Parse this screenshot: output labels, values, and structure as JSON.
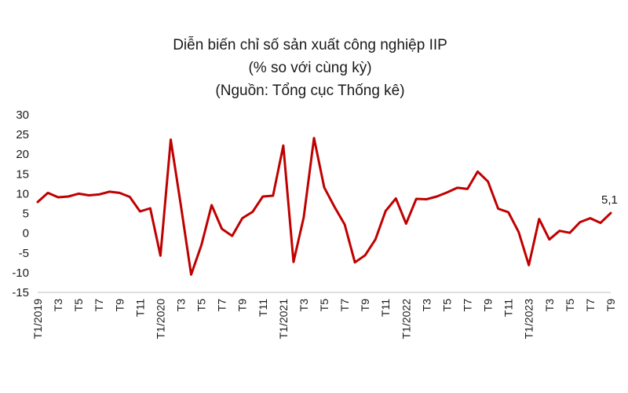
{
  "chart_data": {
    "type": "line",
    "title_lines": [
      "Diễn biến chỉ số sản xuất công nghiệp IIP",
      "(% so với cùng kỳ)",
      "(Nguồn: Tổng cục Thống kê)"
    ],
    "xlabel": "",
    "ylabel": "",
    "ylim": [
      -15,
      30
    ],
    "yticks": [
      30,
      25,
      20,
      15,
      10,
      5,
      0,
      -5,
      -10,
      -15
    ],
    "grid": false,
    "legend": "none",
    "line_color": "#c00000",
    "x_tick_labels": [
      "T1/2019",
      "T3",
      "T5",
      "T7",
      "T9",
      "T11",
      "T1/2020",
      "T3",
      "T5",
      "T7",
      "T9",
      "T11",
      "T1/2021",
      "T3",
      "T5",
      "T7",
      "T9",
      "T11",
      "T1/2022",
      "T3",
      "T5",
      "T7",
      "T9",
      "T11",
      "T1/2023",
      "T3",
      "T5",
      "T7",
      "T9"
    ],
    "series": [
      {
        "values": [
          7.9,
          10.2,
          9.1,
          9.3,
          10.0,
          9.6,
          9.8,
          10.5,
          10.2,
          9.2,
          5.5,
          6.3,
          -5.7,
          23.7,
          6.9,
          -10.5,
          -3.0,
          7.1,
          1.1,
          -0.7,
          3.8,
          5.4,
          9.3,
          9.5,
          22.2,
          -7.3,
          4.0,
          24.1,
          11.6,
          6.7,
          2.2,
          -7.4,
          -5.6,
          -1.6,
          5.6,
          8.8,
          2.4,
          8.7,
          8.6,
          9.3,
          10.3,
          11.5,
          11.2,
          15.6,
          13.1,
          6.2,
          5.3,
          0.3,
          -8.1,
          3.6,
          -1.6,
          0.6,
          0.1,
          2.8,
          3.8,
          2.6,
          5.1
        ]
      }
    ],
    "annotations": [
      {
        "text": "5,1",
        "point_index": 56
      }
    ]
  }
}
